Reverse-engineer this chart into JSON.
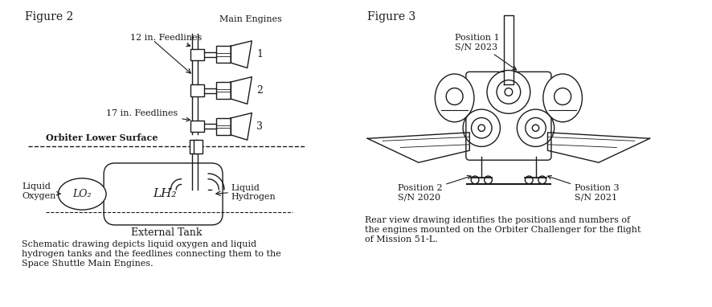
{
  "fig2_title": "Figure 2",
  "fig3_title": "Figure 3",
  "fig2_labels": {
    "main_engines": "Main Engines",
    "feedlines_12": "12 in. Feedlines",
    "feedlines_17": "17 in. Feedlines",
    "orbiter_surface": "Orbiter Lower Surface",
    "liquid_oxygen": "Liquid\nOxygen",
    "lo2": "LO₂",
    "lh2": "LH₂",
    "liquid_hydrogen": "Liquid\nHydrogen",
    "external_tank": "External Tank",
    "engine1": "1",
    "engine2": "2",
    "engine3": "3"
  },
  "fig3_labels": {
    "position1": "Position 1\nS/N 2023",
    "position2": "Position 2\nS/N 2020",
    "position3": "Position 3\nS/N 2021"
  },
  "caption2": "Schematic drawing depicts liquid oxygen and liquid\nhydrogen tanks and the feedlines connecting them to the\nSpace Shuttle Main Engines.",
  "caption3": "Rear view drawing identifies the positions and numbers of\nthe engines mounted on the Orbiter Challenger for the flight\nof Mission 51-L.",
  "line_color": "#1a1a1a",
  "text_color": "#1a1a1a",
  "font_size_title": 10,
  "font_size_label": 8,
  "font_size_caption": 8
}
